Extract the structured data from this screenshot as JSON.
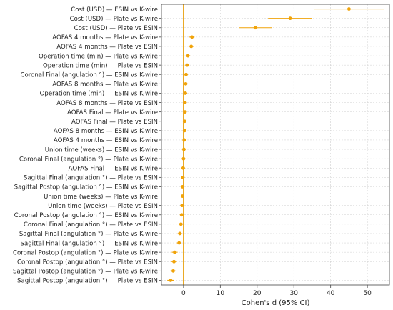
{
  "chart_data": {
    "type": "forest",
    "xlabel": "Cohen's d (95% CI)",
    "xlim": [
      -6,
      56
    ],
    "xticks": [
      0,
      10,
      20,
      30,
      40,
      50
    ],
    "reference_line": 0,
    "grid": true,
    "colors": {
      "marker": "#f0a30a",
      "reference": "#e8a317",
      "grid": "#cfcfcf",
      "axis": "#444444"
    },
    "rows": [
      {
        "label": "Cost (USD) — ESIN vs K-wire",
        "d": 45.0,
        "ci": [
          35.5,
          54.5
        ]
      },
      {
        "label": "Cost (USD) — Plate vs K-wire",
        "d": 29.0,
        "ci": [
          23.0,
          35.0
        ]
      },
      {
        "label": "Cost (USD) — Plate vs ESIN",
        "d": 19.5,
        "ci": [
          15.0,
          24.0
        ]
      },
      {
        "label": "AOFAS 4 months — Plate vs K-wire",
        "d": 2.3,
        "ci": [
          1.6,
          3.0
        ]
      },
      {
        "label": "AOFAS 4 months — Plate vs ESIN",
        "d": 2.1,
        "ci": [
          1.4,
          2.8
        ]
      },
      {
        "label": "Operation time (min) — Plate vs K-wire",
        "d": 1.2,
        "ci": [
          0.6,
          1.8
        ]
      },
      {
        "label": "Operation time (min) — Plate vs ESIN",
        "d": 1.0,
        "ci": [
          0.4,
          1.6
        ]
      },
      {
        "label": "Coronal Final (angulation °) — ESIN vs K-wire",
        "d": 0.7,
        "ci": [
          0.2,
          1.2
        ]
      },
      {
        "label": "AOFAS 8 months — Plate vs K-wire",
        "d": 0.6,
        "ci": [
          0.1,
          1.1
        ]
      },
      {
        "label": "Operation time (min) — ESIN vs K-wire",
        "d": 0.5,
        "ci": [
          0.0,
          1.0
        ]
      },
      {
        "label": "AOFAS 8 months — Plate vs ESIN",
        "d": 0.4,
        "ci": [
          -0.1,
          0.9
        ]
      },
      {
        "label": "AOFAS Final — Plate vs K-wire",
        "d": 0.4,
        "ci": [
          -0.1,
          0.9
        ]
      },
      {
        "label": "AOFAS Final — Plate vs ESIN",
        "d": 0.3,
        "ci": [
          -0.2,
          0.8
        ]
      },
      {
        "label": "AOFAS 8 months — ESIN vs K-wire",
        "d": 0.3,
        "ci": [
          -0.2,
          0.8
        ]
      },
      {
        "label": "AOFAS 4 months — ESIN vs K-wire",
        "d": 0.2,
        "ci": [
          -0.3,
          0.7
        ]
      },
      {
        "label": "Union time (weeks) — ESIN vs K-wire",
        "d": 0.1,
        "ci": [
          -0.4,
          0.6
        ]
      },
      {
        "label": "Coronal Final (angulation °) — Plate vs K-wire",
        "d": 0.0,
        "ci": [
          -0.5,
          0.5
        ]
      },
      {
        "label": "AOFAS Final — ESIN vs K-wire",
        "d": -0.1,
        "ci": [
          -0.6,
          0.4
        ]
      },
      {
        "label": "Sagittal Final (angulation °) — Plate vs ESIN",
        "d": -0.2,
        "ci": [
          -0.7,
          0.3
        ]
      },
      {
        "label": "Sagittal Postop (angulation °) — ESIN vs K-wire",
        "d": -0.3,
        "ci": [
          -0.8,
          0.2
        ]
      },
      {
        "label": "Union time (weeks) — Plate vs K-wire",
        "d": -0.3,
        "ci": [
          -0.8,
          0.2
        ]
      },
      {
        "label": "Union time (weeks) — Plate vs ESIN",
        "d": -0.4,
        "ci": [
          -0.9,
          0.1
        ]
      },
      {
        "label": "Coronal Postop (angulation °) — ESIN vs K-wire",
        "d": -0.5,
        "ci": [
          -1.0,
          0.0
        ]
      },
      {
        "label": "Coronal Final (angulation °) — Plate vs ESIN",
        "d": -0.7,
        "ci": [
          -1.2,
          -0.2
        ]
      },
      {
        "label": "Sagittal Final (angulation °) — Plate vs K-wire",
        "d": -1.0,
        "ci": [
          -1.6,
          -0.4
        ]
      },
      {
        "label": "Sagittal Final (angulation °) — ESIN vs K-wire",
        "d": -1.2,
        "ci": [
          -1.8,
          -0.6
        ]
      },
      {
        "label": "Coronal Postop (angulation °) — Plate vs K-wire",
        "d": -2.4,
        "ci": [
          -3.2,
          -1.6
        ]
      },
      {
        "label": "Coronal Postop (angulation °) — Plate vs ESIN",
        "d": -2.6,
        "ci": [
          -3.4,
          -1.8
        ]
      },
      {
        "label": "Sagittal Postop (angulation °) — Plate vs K-wire",
        "d": -2.8,
        "ci": [
          -3.6,
          -2.0
        ]
      },
      {
        "label": "Sagittal Postop (angulation °) — Plate vs ESIN",
        "d": -3.5,
        "ci": [
          -4.4,
          -2.6
        ]
      }
    ]
  }
}
